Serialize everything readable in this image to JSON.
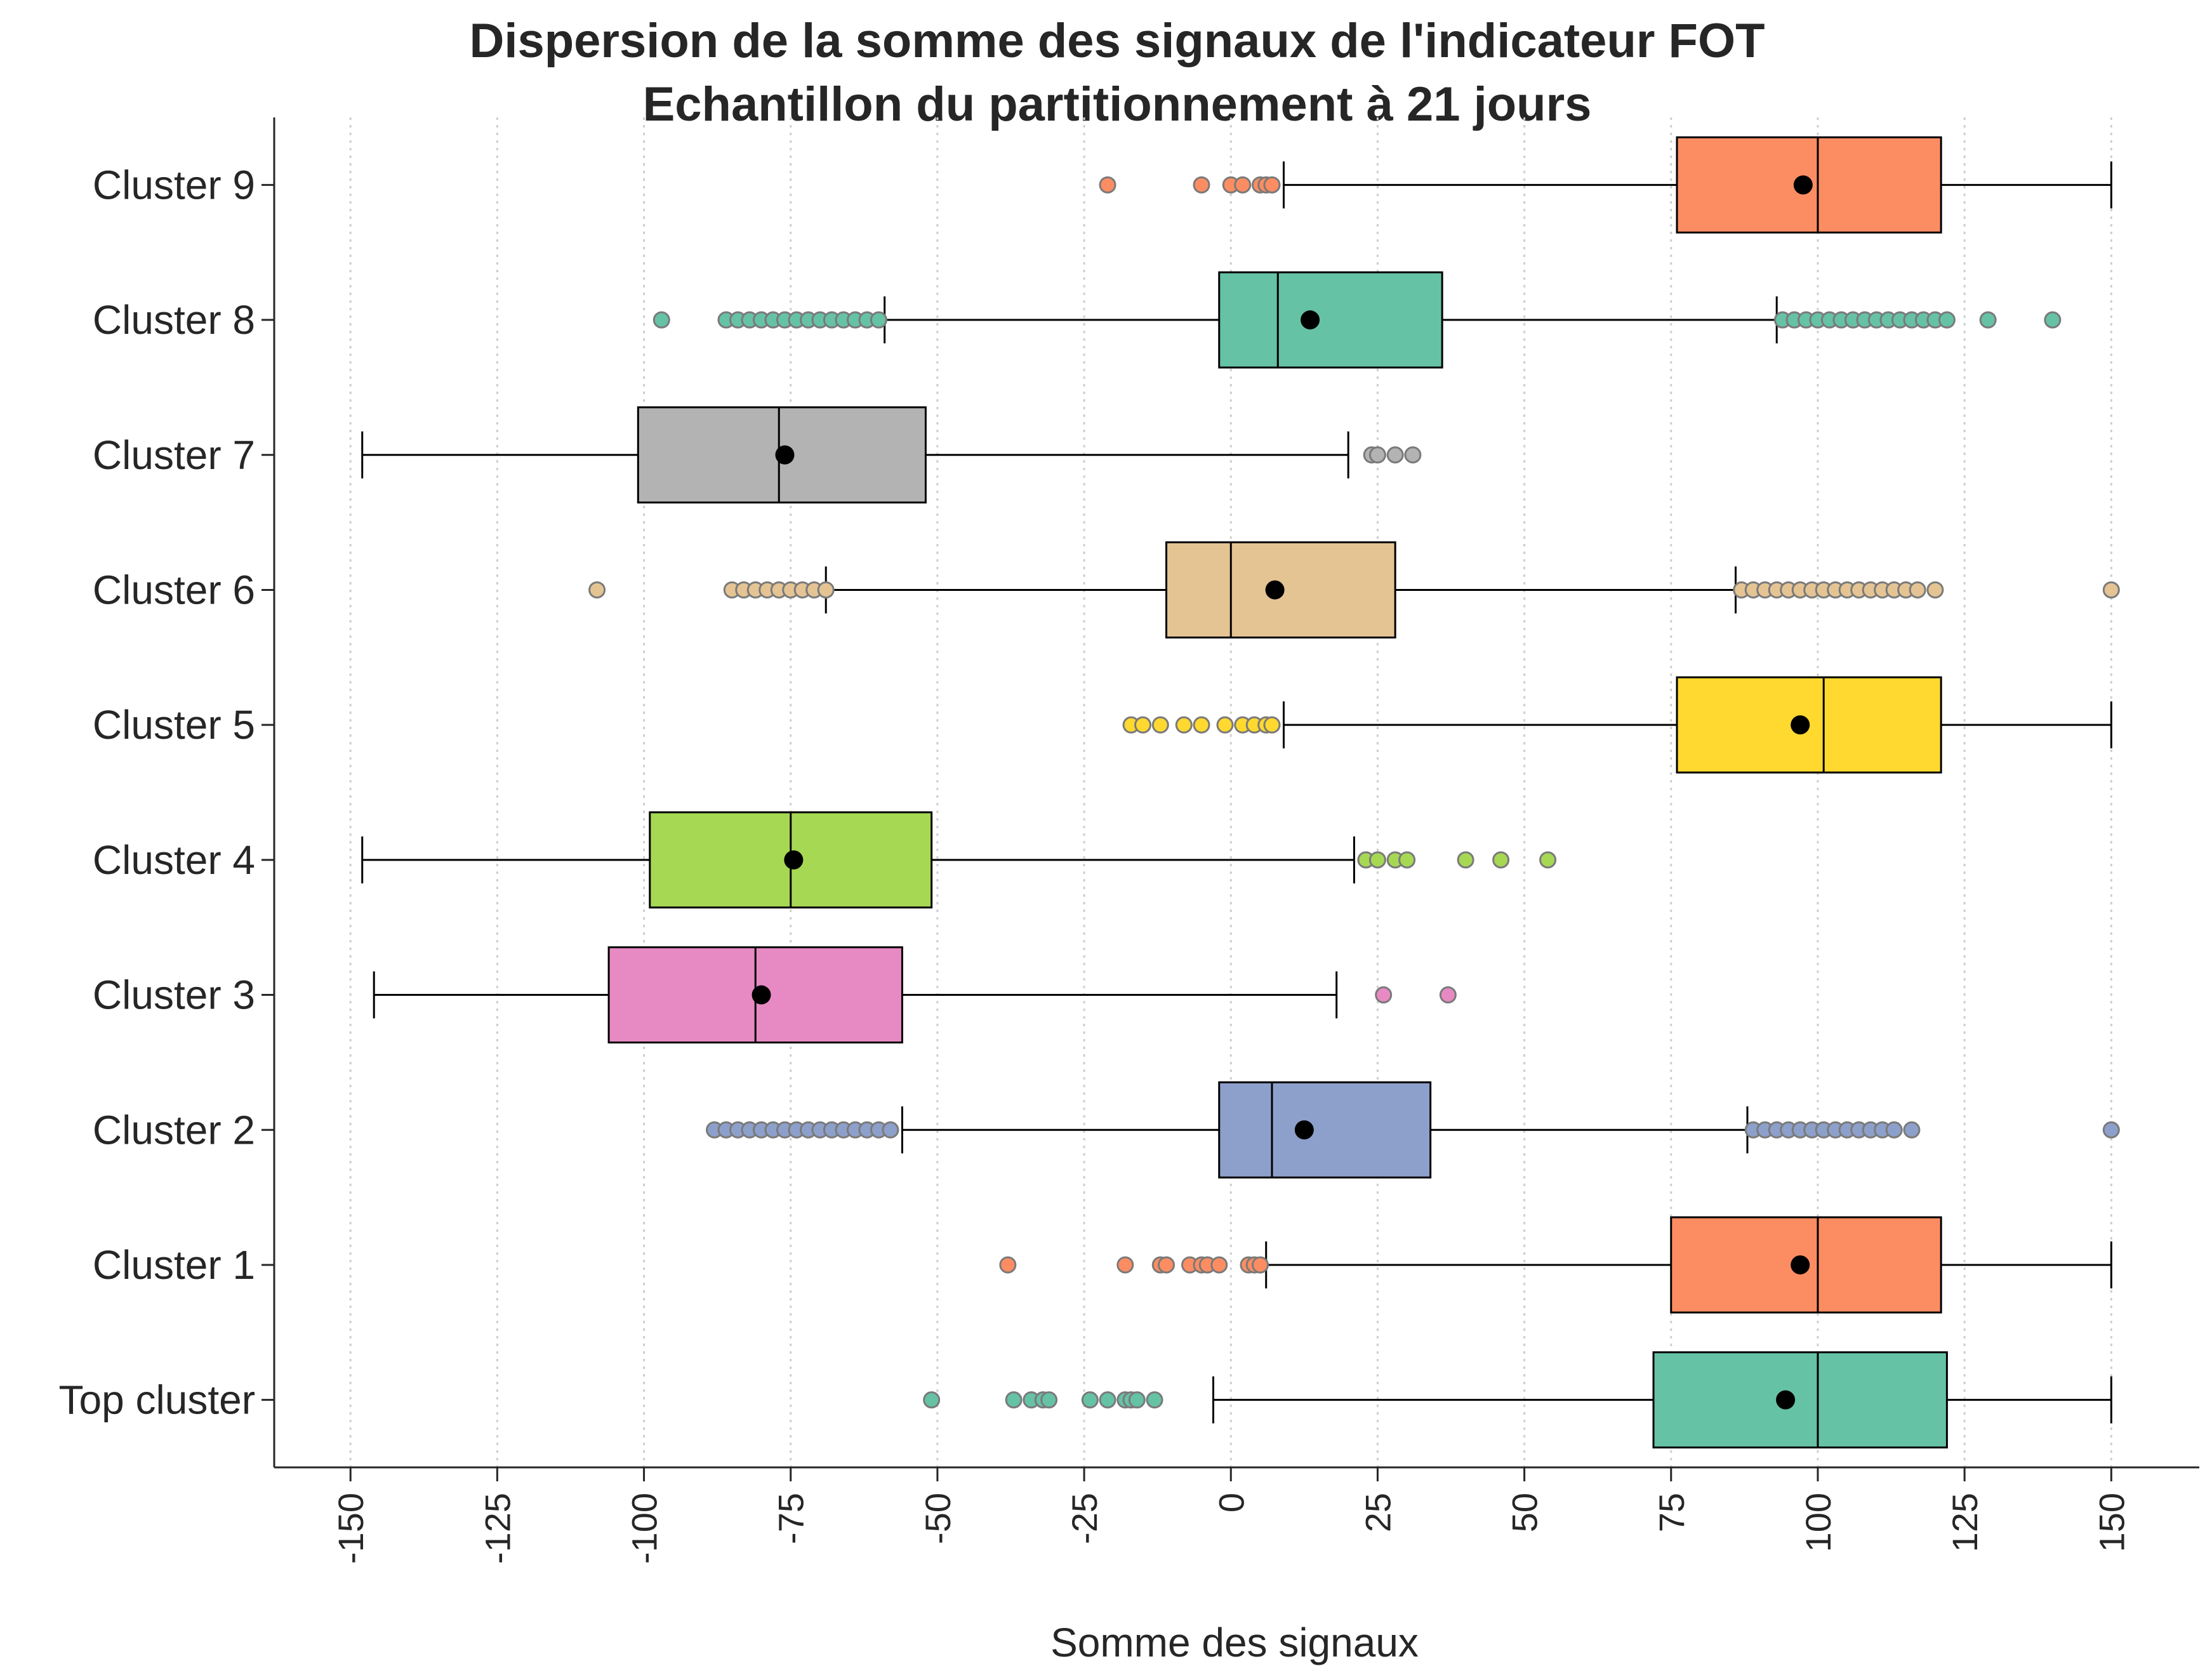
{
  "chart_data": {
    "type": "boxplot",
    "orientation": "horizontal",
    "title": "Dispersion de la somme des signaux de l'indicateur FOT",
    "subtitle": "Echantillon du partitionnement à 21 jours",
    "xlabel": "Somme des signaux",
    "ylabel": "",
    "xlim": [
      -163,
      165
    ],
    "xticks": [
      -150,
      -125,
      -100,
      -75,
      -50,
      -25,
      0,
      25,
      50,
      75,
      100,
      125,
      150
    ],
    "grid": "x-dotted",
    "legend": "none",
    "mean_marker_color": "#000000",
    "categories": [
      "Cluster 9",
      "Cluster 8",
      "Cluster 7",
      "Cluster 6",
      "Cluster 5",
      "Cluster 4",
      "Cluster 3",
      "Cluster 2",
      "Cluster 1",
      "Top cluster"
    ],
    "series": [
      {
        "name": "Cluster 9",
        "color": "#fc8d62",
        "whislo": 9,
        "q1": 76,
        "median": 100,
        "q3": 121,
        "whishi": 150,
        "mean": 97.5,
        "fliers": [
          -21,
          -5,
          0,
          2,
          5,
          6,
          7
        ]
      },
      {
        "name": "Cluster 8",
        "color": "#66c2a5",
        "whislo": -59,
        "q1": -2,
        "median": 8,
        "q3": 36,
        "whishi": 93,
        "mean": 13.5,
        "fliers": [
          -97,
          -86,
          -84,
          -82,
          -80,
          -78,
          -76,
          -74,
          -72,
          -70,
          -68,
          -66,
          -64,
          -62,
          -60,
          94,
          96,
          98,
          100,
          102,
          104,
          106,
          108,
          110,
          112,
          114,
          116,
          118,
          120,
          122,
          129,
          140
        ]
      },
      {
        "name": "Cluster 7",
        "color": "#b3b3b3",
        "whislo": -148,
        "q1": -101,
        "median": -77,
        "q3": -52,
        "whishi": 20,
        "mean": -76,
        "fliers": [
          24,
          25,
          28,
          31
        ]
      },
      {
        "name": "Cluster 6",
        "color": "#e5c494",
        "whislo": -69,
        "q1": -11,
        "median": 0,
        "q3": 28,
        "whishi": 86,
        "mean": 7.5,
        "fliers": [
          -108,
          -85,
          -83,
          -81,
          -79,
          -77,
          -75,
          -73,
          -71,
          -69,
          87,
          89,
          91,
          93,
          95,
          97,
          99,
          101,
          103,
          105,
          107,
          109,
          111,
          113,
          115,
          117,
          120,
          150
        ]
      },
      {
        "name": "Cluster 5",
        "color": "#ffd92f",
        "whislo": 9,
        "q1": 76,
        "median": 101,
        "q3": 121,
        "whishi": 150,
        "mean": 97,
        "fliers": [
          -17,
          -15,
          -12,
          -8,
          -5,
          -1,
          2,
          4,
          6,
          7
        ]
      },
      {
        "name": "Cluster 4",
        "color": "#a6d854",
        "whislo": -148,
        "q1": -99,
        "median": -75,
        "q3": -51,
        "whishi": 21,
        "mean": -74.5,
        "fliers": [
          23,
          25,
          28,
          30,
          40,
          46,
          54
        ]
      },
      {
        "name": "Cluster 3",
        "color": "#e78ac3",
        "whislo": -146,
        "q1": -106,
        "median": -81,
        "q3": -56,
        "whishi": 18,
        "mean": -80,
        "fliers": [
          26,
          37
        ]
      },
      {
        "name": "Cluster 2",
        "color": "#8da0cb",
        "whislo": -56,
        "q1": -2,
        "median": 7,
        "q3": 34,
        "whishi": 88,
        "mean": 12.5,
        "fliers": [
          -88,
          -86,
          -84,
          -82,
          -80,
          -78,
          -76,
          -74,
          -72,
          -70,
          -68,
          -66,
          -64,
          -62,
          -60,
          -58,
          89,
          91,
          93,
          95,
          97,
          99,
          101,
          103,
          105,
          107,
          109,
          111,
          113,
          116,
          150
        ]
      },
      {
        "name": "Cluster 1",
        "color": "#fc8d62",
        "whislo": 6,
        "q1": 75,
        "median": 100,
        "q3": 121,
        "whishi": 150,
        "mean": 97,
        "fliers": [
          -38,
          -18,
          -12,
          -11,
          -7,
          -5,
          -4,
          -2,
          3,
          4,
          5
        ]
      },
      {
        "name": "Top cluster",
        "color": "#66c2a5",
        "whislo": -3,
        "q1": 72,
        "median": 100,
        "q3": 122,
        "whishi": 150,
        "mean": 94.5,
        "fliers": [
          -51,
          -37,
          -34,
          -32,
          -31,
          -24,
          -21,
          -18,
          -17,
          -16,
          -13
        ]
      }
    ]
  }
}
